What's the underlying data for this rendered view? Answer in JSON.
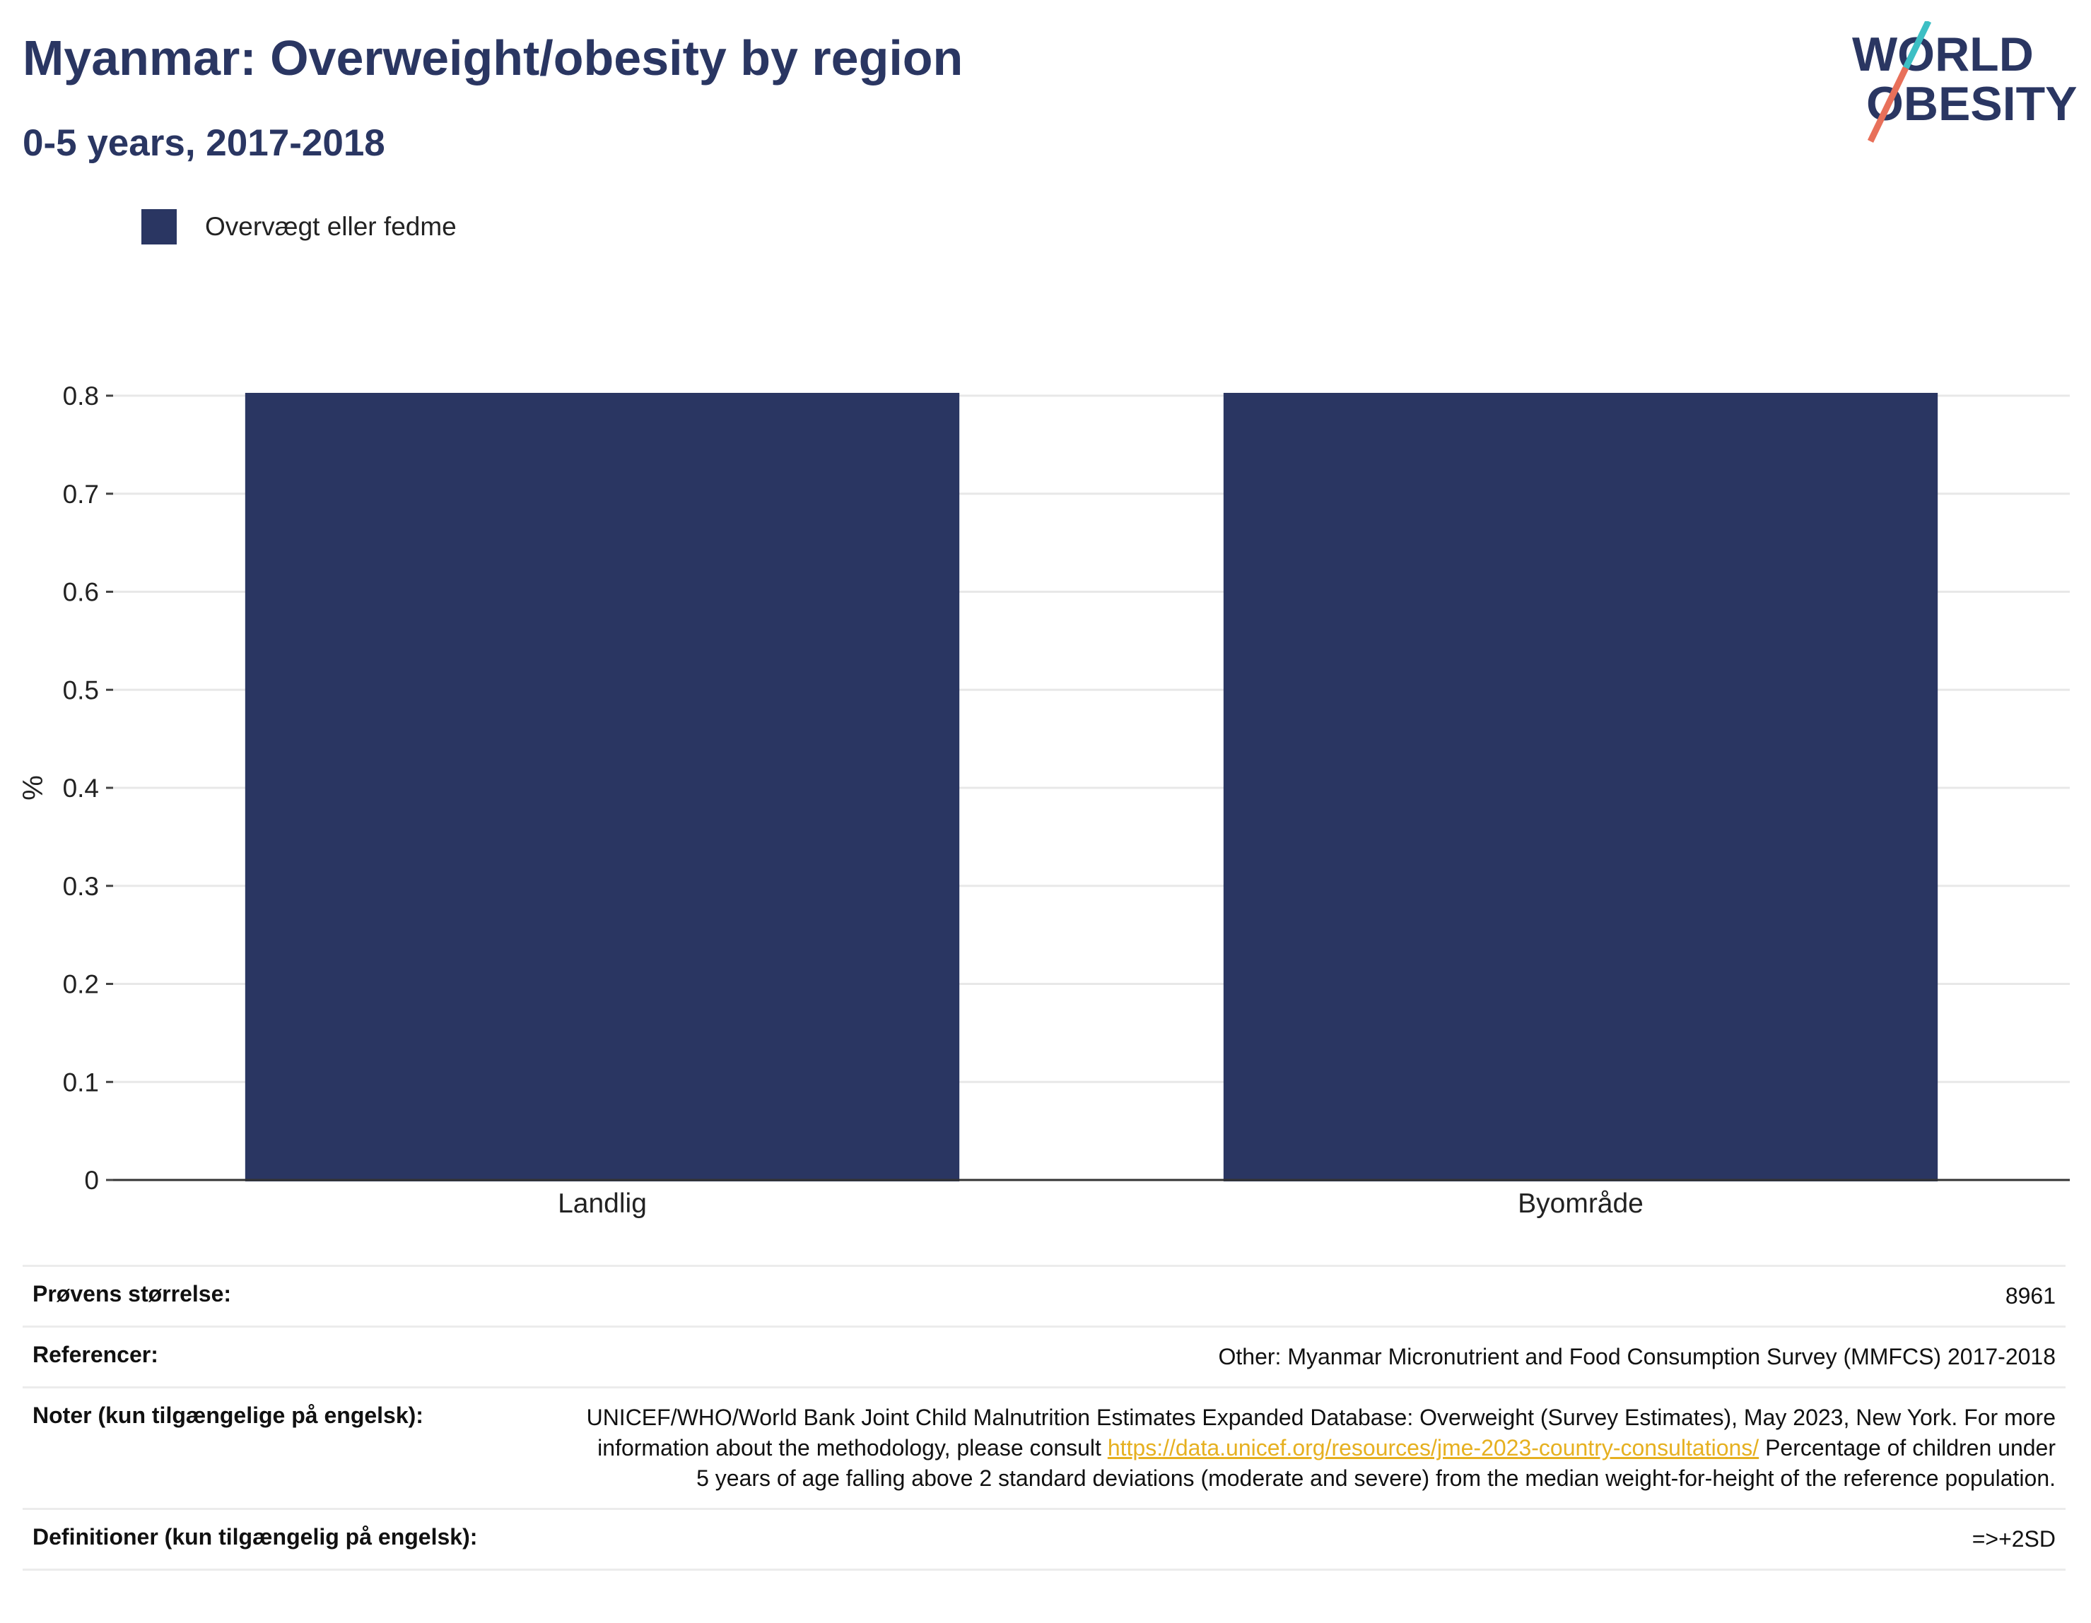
{
  "header": {
    "title": "Myanmar: Overweight/obesity by region",
    "subtitle": "0-5 years, 2017-2018"
  },
  "logo": {
    "line1": "WORLD",
    "line2": "OBESITY",
    "colors": {
      "text": "#2a3662",
      "slash_top": "#3dbfc4",
      "slash_bottom": "#e8705a"
    }
  },
  "legend": {
    "label": "Overvægt eller fedme",
    "color": "#2a3662"
  },
  "chart_data": {
    "type": "bar",
    "categories": [
      "Landlig",
      "Byområde"
    ],
    "series": [
      {
        "name": "Overvægt eller fedme",
        "values": [
          0.8,
          0.8
        ],
        "color": "#2a3662"
      }
    ],
    "ylabel": "%",
    "ylim": [
      0,
      0.8
    ],
    "yticks": [
      0,
      0.1,
      0.2,
      0.3,
      0.4,
      0.5,
      0.6,
      0.7,
      0.8
    ],
    "grid": true
  },
  "meta": {
    "sample_size": {
      "label": "Prøvens størrelse:",
      "value": "8961"
    },
    "references": {
      "label": "Referencer:",
      "value": "Other: Myanmar Micronutrient and Food Consumption Survey (MMFCS) 2017-2018"
    },
    "notes": {
      "label": "Noter (kun tilgængelige på engelsk):",
      "text_before": "UNICEF/WHO/World Bank Joint Child Malnutrition Estimates Expanded Database: Overweight (Survey Estimates), May 2023, New York. For more information about the methodology, please consult ",
      "link": "https://data.unicef.org/resources/jme-2023-country-consultations/",
      "text_after": " Percentage of children under 5 years of age falling above 2 standard deviations (moderate and severe) from the median weight-for-height of the reference population."
    },
    "definitions": {
      "label": "Definitioner (kun tilgængelig på engelsk):",
      "value": "=>+2SD"
    }
  }
}
